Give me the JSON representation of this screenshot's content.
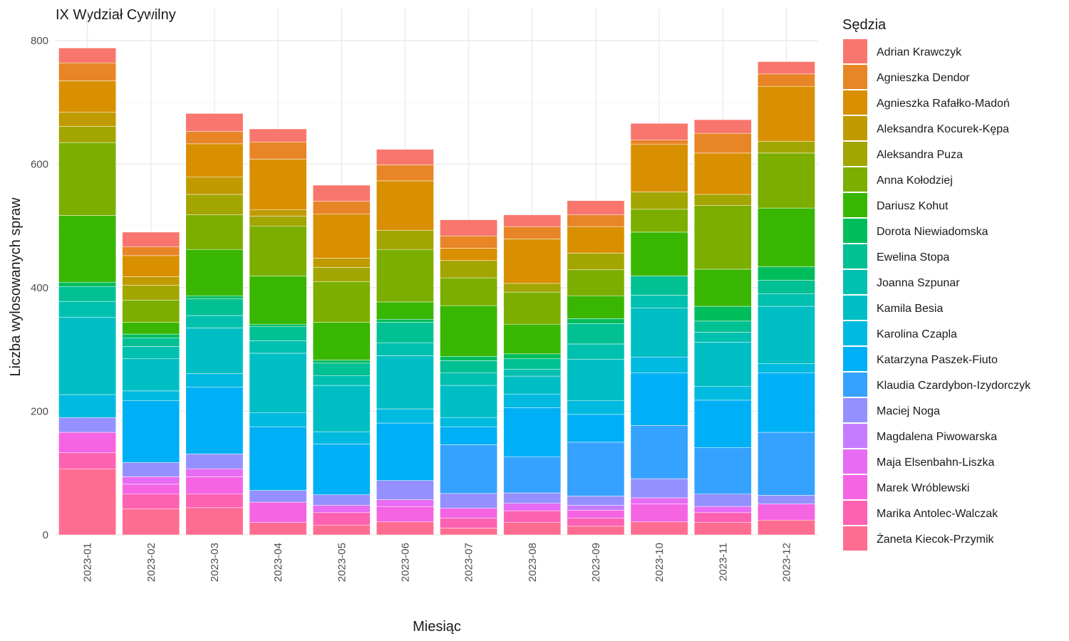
{
  "chart_data": {
    "type": "bar",
    "stacked": true,
    "title": "IX Wydział Cywilny",
    "xlabel": "Miesiąc",
    "ylabel": "Liczba wylosowanych spraw",
    "ylim": [
      0,
      820
    ],
    "yticks": [
      0,
      200,
      400,
      600,
      800
    ],
    "grid": true,
    "legend_title": "Sędzia",
    "legend_position": "right",
    "categories": [
      "2023-01",
      "2023-02",
      "2023-03",
      "2023-04",
      "2023-05",
      "2023-06",
      "2023-07",
      "2023-08",
      "2023-09",
      "2023-10",
      "2023-11",
      "2023-12"
    ],
    "series": [
      {
        "name": "Żaneta Kiecok-Przymik",
        "color": "#FF6C91",
        "values": [
          107,
          42,
          44,
          20,
          16,
          21,
          11,
          20,
          14,
          21,
          20,
          24
        ]
      },
      {
        "name": "Marika Antolec-Walczak",
        "color": "#FD61B1",
        "values": [
          26,
          24,
          22,
          0,
          20,
          0,
          16,
          19,
          13,
          0,
          16,
          0
        ]
      },
      {
        "name": "Marek Wróblewski",
        "color": "#F564E3",
        "values": [
          33,
          16,
          28,
          33,
          0,
          25,
          16,
          0,
          13,
          29,
          0,
          26
        ]
      },
      {
        "name": "Maja Elsenbahn-Liszka",
        "color": "#E76BF3",
        "values": [
          0,
          12,
          13,
          0,
          12,
          11,
          0,
          12,
          0,
          10,
          10,
          0
        ]
      },
      {
        "name": "Magdalena Piwowarska",
        "color": "#C77CFF",
        "values": [
          0,
          0,
          0,
          0,
          0,
          0,
          0,
          0,
          8,
          0,
          0,
          0
        ]
      },
      {
        "name": "Maciej Noga",
        "color": "#9590FF",
        "values": [
          24,
          23,
          24,
          19,
          17,
          31,
          24,
          17,
          15,
          31,
          20,
          14
        ]
      },
      {
        "name": "Klaudia Czardybon-Izydorczyk",
        "color": "#35A2FF",
        "values": [
          0,
          0,
          0,
          0,
          0,
          0,
          79,
          58,
          87,
          86,
          75,
          102
        ]
      },
      {
        "name": "Katarzyna Paszek-Fiuto",
        "color": "#00B0F6",
        "values": [
          0,
          100,
          108,
          103,
          82,
          93,
          29,
          80,
          45,
          85,
          77,
          96
        ]
      },
      {
        "name": "Karolina Czapla",
        "color": "#00BAE0",
        "values": [
          37,
          16,
          22,
          23,
          20,
          23,
          15,
          22,
          22,
          26,
          22,
          15
        ]
      },
      {
        "name": "Kamila Besia",
        "color": "#00BFC4",
        "values": [
          125,
          52,
          74,
          96,
          75,
          86,
          52,
          29,
          67,
          79,
          72,
          93
        ]
      },
      {
        "name": "Joanna Szpunar",
        "color": "#00C0AF",
        "values": [
          26,
          20,
          20,
          20,
          16,
          21,
          20,
          11,
          25,
          21,
          16,
          20
        ]
      },
      {
        "name": "Ewelina Stopa",
        "color": "#00C094",
        "values": [
          24,
          14,
          27,
          23,
          20,
          33,
          20,
          17,
          33,
          31,
          18,
          22
        ]
      },
      {
        "name": "Dorota Niewiadomska",
        "color": "#00BD5C",
        "values": [
          7,
          6,
          5,
          4,
          5,
          5,
          7,
          8,
          8,
          0,
          24,
          22
        ]
      },
      {
        "name": "Dariusz Kohut",
        "color": "#39B600",
        "values": [
          108,
          19,
          75,
          78,
          61,
          28,
          82,
          48,
          37,
          71,
          60,
          95
        ]
      },
      {
        "name": "Anna Kołodziej",
        "color": "#7CAE00",
        "values": [
          118,
          36,
          56,
          81,
          66,
          85,
          45,
          52,
          42,
          37,
          103,
          89
        ]
      },
      {
        "name": "Aleksandra Puza",
        "color": "#A3A500",
        "values": [
          26,
          24,
          33,
          16,
          23,
          31,
          28,
          14,
          27,
          28,
          18,
          19
        ]
      },
      {
        "name": "Aleksandra Kocurek-Kępa",
        "color": "#C09B00",
        "values": [
          23,
          14,
          28,
          10,
          15,
          0,
          0,
          0,
          0,
          0,
          0,
          0
        ]
      },
      {
        "name": "Agnieszka Rafałko-Madoń",
        "color": "#D89000",
        "values": [
          51,
          34,
          54,
          82,
          71,
          80,
          20,
          72,
          43,
          77,
          67,
          89
        ]
      },
      {
        "name": "Agnieszka Dendor",
        "color": "#E88526",
        "values": [
          29,
          14,
          20,
          28,
          21,
          26,
          20,
          20,
          19,
          7,
          32,
          20
        ]
      },
      {
        "name": "Adrian Krawczyk",
        "color": "#F8766D",
        "values": [
          24,
          24,
          29,
          21,
          26,
          25,
          26,
          19,
          23,
          27,
          22,
          20
        ]
      }
    ]
  }
}
